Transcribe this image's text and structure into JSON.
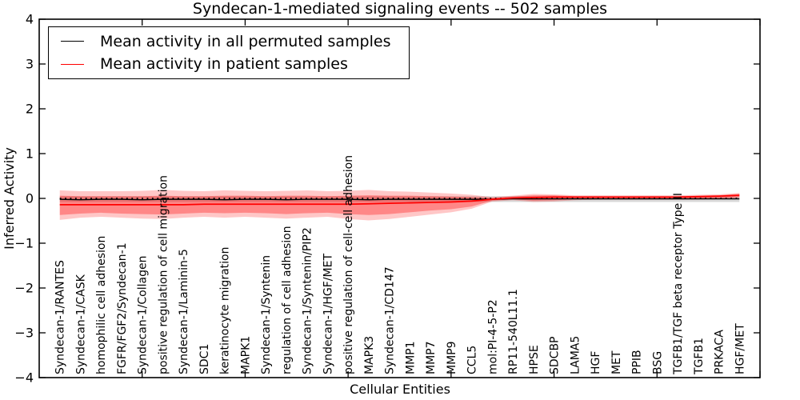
{
  "colors": {
    "permuted_line": "#000000",
    "patient_line": "#ff0000",
    "patient_band_outer": "rgba(255,0,0,0.22)",
    "patient_band_inner": "rgba(255,0,0,0.32)",
    "permuted_band": "rgba(125,125,125,0.30)",
    "zero_line": "#000000",
    "frame": "#000000"
  },
  "legend": {
    "items": [
      {
        "label": "Mean activity in all permuted samples",
        "color": "#000000"
      },
      {
        "label": "Mean activity in patient samples",
        "color": "#ff0000"
      }
    ]
  },
  "chart_data": {
    "type": "line",
    "title": "Syndecan-1-mediated signaling events -- 502 samples",
    "xlabel": "Cellular Entities",
    "ylabel": "Inferred Activity",
    "ylim": [
      -4,
      4
    ],
    "yticks": [
      -4,
      -3,
      -2,
      -1,
      0,
      1,
      2,
      3,
      4
    ],
    "xlim": [
      0,
      35
    ],
    "xtick_mark_positions": [
      5,
      10,
      15,
      20,
      25,
      30,
      35
    ],
    "grid": false,
    "legend_position": "upper left",
    "zero_reference_line": {
      "y": 0,
      "style": "dotted",
      "color": "#000000"
    },
    "categories": [
      "Syndecan-1/RANTES",
      "Syndecan-1/CASK",
      "homophilic cell adhesion",
      "FGFR/FGF2/Syndecan-1",
      "Syndecan-1/Collagen",
      "positive regulation of cell migration",
      "Syndecan-1/Laminin-5",
      "SDC1",
      "keratinocyte migration",
      "MAPK1",
      "Syndecan-1/Syntenin",
      "regulation of cell adhesion",
      "Syndecan-1/Syntenin/PIP2",
      "Syndecan-1/HGF/MET",
      "positive regulation of cell-cell adhesion",
      "MAPK3",
      "Syndecan-1/CD147",
      "MMP1",
      "MMP7",
      "MMP9",
      "CCL5",
      "mol:PI-4-5-P2",
      "RP11-540L11.1",
      "HPSE",
      "SDCBP",
      "LAMA5",
      "HGF",
      "MET",
      "PPIB",
      "BSG",
      "TGFB1/TGF beta receptor Type II",
      "TGFB1",
      "PRKACA",
      "HGF/MET"
    ],
    "series": [
      {
        "name": "Mean activity in all permuted samples",
        "color_ref": "permuted_line",
        "values": [
          -0.02,
          -0.03,
          -0.02,
          -0.02,
          -0.03,
          -0.02,
          -0.02,
          -0.02,
          -0.03,
          -0.02,
          -0.02,
          -0.03,
          -0.02,
          -0.02,
          -0.02,
          -0.03,
          -0.02,
          -0.02,
          -0.02,
          -0.02,
          -0.02,
          -0.02,
          -0.01,
          -0.01,
          -0.01,
          -0.01,
          -0.01,
          -0.01,
          -0.01,
          -0.01,
          -0.01,
          -0.01,
          -0.01,
          -0.01
        ]
      },
      {
        "name": "Mean activity in patient samples",
        "color_ref": "patient_line",
        "values": [
          -0.14,
          -0.14,
          -0.14,
          -0.14,
          -0.14,
          -0.14,
          -0.14,
          -0.13,
          -0.13,
          -0.13,
          -0.13,
          -0.13,
          -0.13,
          -0.13,
          -0.13,
          -0.12,
          -0.11,
          -0.1,
          -0.09,
          -0.08,
          -0.06,
          -0.02,
          0.01,
          0.02,
          0.03,
          0.03,
          0.03,
          0.03,
          0.03,
          0.03,
          0.03,
          0.04,
          0.05,
          0.07
        ]
      }
    ],
    "bands": [
      {
        "name": "permuted-activity-band",
        "color_ref": "permuted_band",
        "upper": 0.05,
        "lower": -0.08
      },
      {
        "name": "patient-activity-band-outer",
        "color_ref": "patient_band_outer",
        "upper": [
          0.18,
          0.16,
          0.16,
          0.16,
          0.17,
          0.19,
          0.17,
          0.16,
          0.18,
          0.17,
          0.16,
          0.17,
          0.18,
          0.16,
          0.17,
          0.19,
          0.16,
          0.15,
          0.13,
          0.11,
          0.08,
          0.03,
          0.06,
          0.1,
          0.09,
          0.07,
          0.07,
          0.07,
          0.07,
          0.07,
          0.07,
          0.08,
          0.09,
          0.12
        ],
        "lower": [
          -0.48,
          -0.43,
          -0.41,
          -0.43,
          -0.45,
          -0.46,
          -0.43,
          -0.41,
          -0.43,
          -0.41,
          -0.43,
          -0.45,
          -0.43,
          -0.41,
          -0.46,
          -0.49,
          -0.46,
          -0.41,
          -0.36,
          -0.31,
          -0.23,
          -0.07,
          -0.04,
          -0.08,
          -0.07,
          -0.04,
          -0.03,
          -0.03,
          -0.03,
          -0.03,
          -0.03,
          -0.03,
          -0.02,
          0.01
        ]
      },
      {
        "name": "patient-activity-band-inner",
        "color_ref": "patient_band_inner",
        "upper": [
          0.06,
          0.05,
          0.05,
          0.05,
          0.05,
          0.06,
          0.05,
          0.05,
          0.06,
          0.06,
          0.05,
          0.06,
          0.06,
          0.05,
          0.06,
          0.07,
          0.06,
          0.06,
          0.05,
          0.04,
          0.03,
          0.01,
          0.04,
          0.07,
          0.07,
          0.05,
          0.05,
          0.05,
          0.05,
          0.05,
          0.05,
          0.06,
          0.07,
          0.1
        ],
        "lower": [
          -0.37,
          -0.34,
          -0.32,
          -0.34,
          -0.35,
          -0.36,
          -0.34,
          -0.32,
          -0.33,
          -0.32,
          -0.33,
          -0.35,
          -0.33,
          -0.32,
          -0.35,
          -0.37,
          -0.35,
          -0.31,
          -0.27,
          -0.24,
          -0.18,
          -0.05,
          -0.02,
          -0.05,
          -0.04,
          -0.02,
          -0.01,
          -0.01,
          -0.01,
          -0.01,
          -0.01,
          -0.01,
          0.0,
          0.03
        ]
      }
    ]
  }
}
